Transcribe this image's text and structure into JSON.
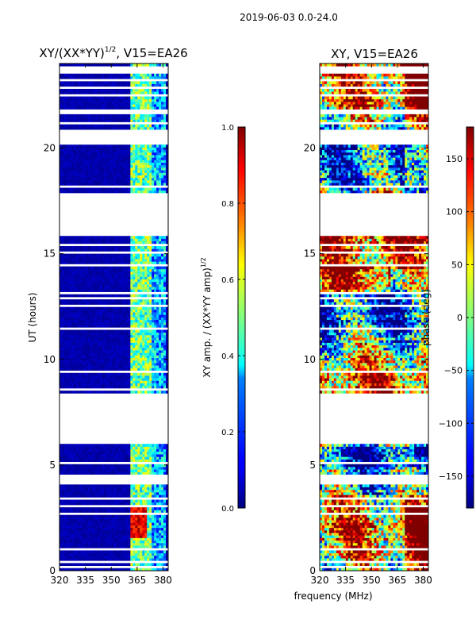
{
  "suptitle": "2019-06-03 0.0-24.0",
  "shared_xlabel": "frequency (MHz)",
  "chart_data": [
    {
      "type": "heatmap",
      "title": "XY/(XX*YY)^1/2, V15=EA26",
      "title_main": "XY/(XX*YY)",
      "title_sup": "1/2",
      "title_rest": ", V15=EA26",
      "ylabel": "UT (hours)",
      "xlim": [
        320,
        383
      ],
      "ylim": [
        0,
        24
      ],
      "xticks": [
        320,
        335,
        350,
        365,
        380
      ],
      "yticks": [
        0,
        5,
        10,
        15,
        20
      ],
      "colorbar": {
        "label_main": "XY amp. / (XX*YY amp)",
        "label_sup": "1/2",
        "range": [
          0.0,
          1.0
        ],
        "ticks": [
          "0.0",
          "0.2",
          "0.4",
          "0.6",
          "0.8",
          "1.0"
        ],
        "tick_values": [
          0.0,
          0.2,
          0.4,
          0.6,
          0.8,
          1.0
        ]
      },
      "colormap": "jet"
    },
    {
      "type": "heatmap",
      "title": "XY, V15=EA26",
      "ylabel": "phase (deg)",
      "xlim": [
        320,
        383
      ],
      "ylim": [
        0,
        24
      ],
      "xticks": [
        320,
        335,
        350,
        365,
        380
      ],
      "yticks": [
        0,
        5,
        10,
        15,
        20
      ],
      "colorbar": {
        "label_main": "phase (deg)",
        "range": [
          -180,
          180
        ],
        "ticks": [
          "−150",
          "−100",
          "−50",
          "0",
          "50",
          "100",
          "150"
        ],
        "tick_values": [
          -150,
          -100,
          -50,
          0,
          50,
          100,
          150
        ]
      },
      "colormap": "jet"
    }
  ],
  "data_gaps_hours": [
    [
      0.15,
      0.25
    ],
    [
      0.38,
      0.45
    ],
    [
      0.95,
      1.05
    ],
    [
      1.55,
      1.6
    ],
    [
      1.75,
      1.85
    ],
    [
      2.65,
      2.75
    ],
    [
      3.05,
      3.1
    ],
    [
      3.38,
      3.45
    ],
    [
      4.1,
      4.5
    ],
    [
      5.08,
      5.18
    ],
    [
      5.48,
      5.55
    ],
    [
      6.0,
      8.4
    ],
    [
      8.55,
      8.62
    ],
    [
      9.35,
      9.45
    ],
    [
      11.45,
      11.55
    ],
    [
      12.2,
      12.25
    ],
    [
      12.5,
      12.6
    ],
    [
      12.85,
      12.92
    ],
    [
      13.12,
      13.18
    ],
    [
      13.9,
      13.98
    ],
    [
      14.4,
      14.46
    ],
    [
      14.75,
      14.8
    ],
    [
      15.0,
      15.1
    ],
    [
      15.4,
      15.45
    ],
    [
      15.85,
      17.9
    ],
    [
      18.15,
      18.2
    ],
    [
      18.6,
      18.65
    ],
    [
      20.2,
      20.35
    ],
    [
      20.45,
      20.9
    ],
    [
      21.15,
      21.25
    ],
    [
      21.65,
      21.9
    ],
    [
      22.45,
      22.55
    ],
    [
      22.75,
      22.9
    ],
    [
      23.15,
      23.25
    ],
    [
      23.5,
      23.85
    ]
  ]
}
